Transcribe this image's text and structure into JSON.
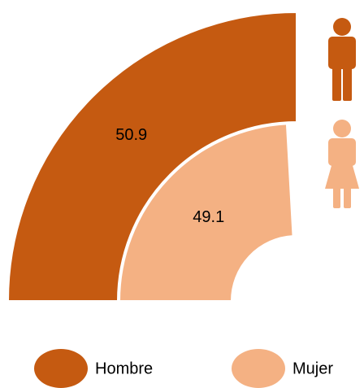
{
  "chart_data": {
    "type": "radial_bar",
    "categories": [
      "Hombre",
      "Mujer"
    ],
    "values": [
      50.9,
      49.1
    ],
    "colors": [
      "#c55a11",
      "#f4b183"
    ],
    "legend": "bottom"
  }
}
